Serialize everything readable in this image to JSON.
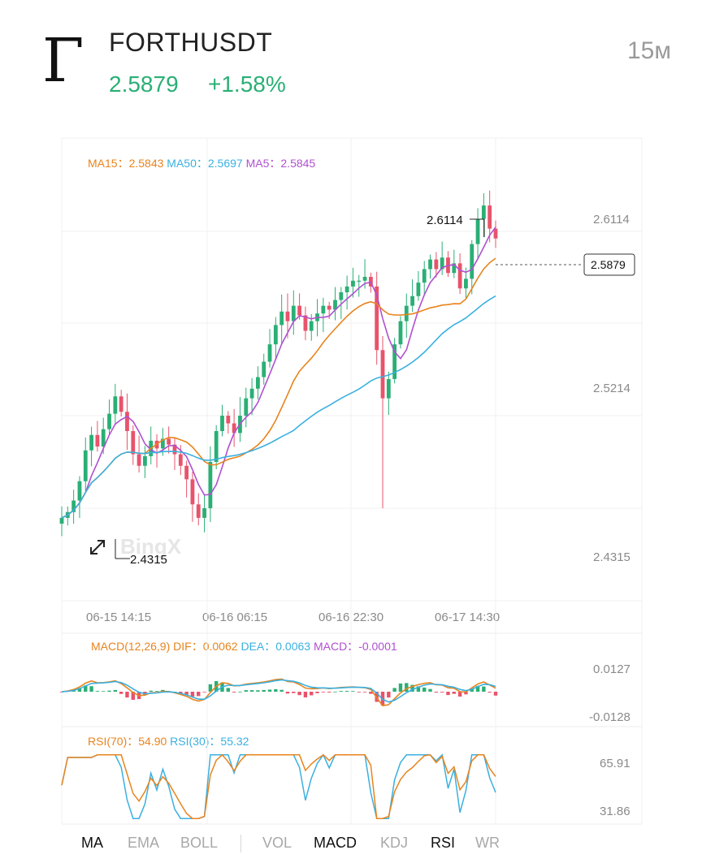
{
  "header": {
    "logo_glyph": "Γ",
    "pair": "FORTHUSDT",
    "price": "2.5879",
    "change": "+1.58%",
    "interval": "15м"
  },
  "colors": {
    "up": "#2aaf75",
    "down": "#e8536b",
    "ma15": "#e8841e",
    "ma50": "#3ab0e0",
    "ma5": "#b050d0",
    "text_grey": "#8a8a8a"
  },
  "main_legend": [
    {
      "label": "MA15：",
      "value": "2.5843",
      "color": "#e8841e"
    },
    {
      "label": "MA50：",
      "value": "2.5697",
      "color": "#3ab0e0"
    },
    {
      "label": "MA5：",
      "value": "2.5845",
      "color": "#b050d0"
    }
  ],
  "macd_legend": [
    {
      "label": "MACD(12,26,9)",
      "value": "",
      "color": "#e8841e"
    },
    {
      "label": "DIF：",
      "value": "0.0062",
      "color": "#e8841e"
    },
    {
      "label": "DEA：",
      "value": "0.0063",
      "color": "#3ab0e0"
    },
    {
      "label": "MACD：",
      "value": "-0.0001",
      "color": "#b050d0"
    }
  ],
  "rsi_legend": [
    {
      "label": "RSI(70)：",
      "value": "54.90",
      "color": "#e8841e"
    },
    {
      "label": "RSI(30)：",
      "value": "55.32",
      "color": "#3ab0e0"
    }
  ],
  "tabs": [
    {
      "label": "MA",
      "active": true
    },
    {
      "label": "EMA",
      "active": false
    },
    {
      "label": "BOLL",
      "active": false
    },
    {
      "label": "VOL",
      "active": false
    },
    {
      "label": "MACD",
      "active": true
    },
    {
      "label": "KDJ",
      "active": false
    },
    {
      "label": "RSI",
      "active": true
    },
    {
      "label": "WR",
      "active": false
    }
  ],
  "watermark": "BingX",
  "chart_data": [
    {
      "type": "candlestick",
      "ylim": [
        2.4,
        2.64
      ],
      "y_ticks": [
        "2.6114",
        "2.5214",
        "2.4315"
      ],
      "x_ticks": [
        "06-15 14:15",
        "06-16 06:15",
        "06-16 22:30",
        "06-17 14:30"
      ],
      "high_label": "2.6114",
      "low_label": "2.4315",
      "last_price_label": "2.5879",
      "last_price": 2.5879,
      "high": 2.6114,
      "low": 2.4315,
      "close": [
        2.443,
        2.446,
        2.452,
        2.462,
        2.478,
        2.486,
        2.48,
        2.489,
        2.497,
        2.506,
        2.498,
        2.488,
        2.476,
        2.47,
        2.475,
        2.483,
        2.479,
        2.484,
        2.481,
        2.476,
        2.47,
        2.463,
        2.45,
        2.443,
        2.448,
        2.472,
        2.488,
        2.496,
        2.492,
        2.487,
        2.496,
        2.505,
        2.51,
        2.516,
        2.524,
        2.533,
        2.543,
        2.55,
        2.545,
        2.553,
        2.548,
        2.54,
        2.545,
        2.549,
        2.553,
        2.551,
        2.556,
        2.56,
        2.563,
        2.566,
        2.566,
        2.568,
        2.563,
        2.53,
        2.505,
        2.515,
        2.533,
        2.545,
        2.553,
        2.558,
        2.565,
        2.572,
        2.577,
        2.572,
        2.578,
        2.57,
        2.575,
        2.562,
        2.567,
        2.585,
        2.598,
        2.605,
        2.593,
        2.5879
      ],
      "series": [
        {
          "name": "MA15：2.5843",
          "color": "#e8841e"
        },
        {
          "name": "MA50：2.5697",
          "color": "#3ab0e0"
        },
        {
          "name": "MA5：2.5845",
          "color": "#b050d0"
        }
      ]
    },
    {
      "type": "bar",
      "title": "MACD(12,26,9)",
      "y_ticks": [
        "0.0127",
        "-0.0128"
      ],
      "ylim": [
        -0.0128,
        0.0127
      ],
      "series": [
        {
          "name": "DIF",
          "value": 0.0062
        },
        {
          "name": "DEA",
          "value": 0.0063
        },
        {
          "name": "MACD",
          "value": -0.0001
        }
      ]
    },
    {
      "type": "line",
      "title": "RSI",
      "y_ticks": [
        "65.91",
        "31.86"
      ],
      "ylim": [
        31.86,
        65.91
      ],
      "series": [
        {
          "name": "RSI(70)",
          "value": 54.9
        },
        {
          "name": "RSI(30)",
          "value": 55.32
        }
      ]
    }
  ]
}
